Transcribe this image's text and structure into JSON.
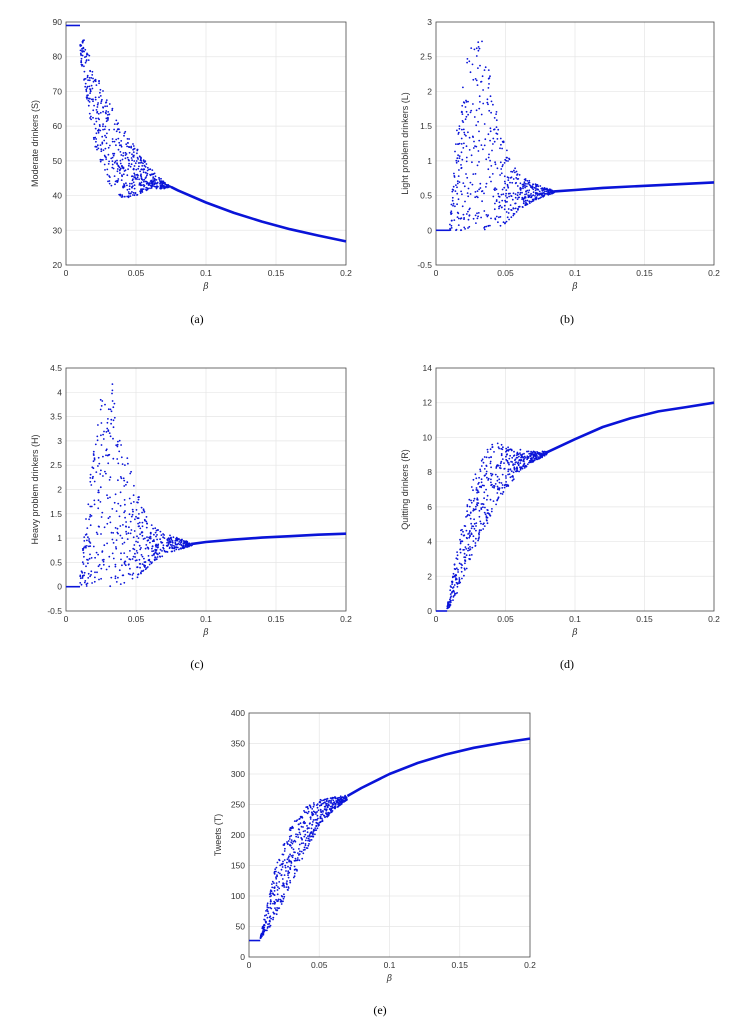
{
  "figure": {
    "captions": [
      "(a)",
      "(b)",
      "(c)",
      "(d)",
      "(e)"
    ]
  },
  "colors": {
    "series": "#0a14d8",
    "grid": "#e6e6e6",
    "axis": "#4d4d4d"
  },
  "chart_data": [
    {
      "type": "scatter",
      "title": "",
      "xlabel": "β",
      "ylabel": "Moderate drinkers (S)",
      "xlim": [
        0,
        0.2
      ],
      "ylim": [
        20,
        90
      ],
      "xticks": [
        "0",
        "0.05",
        "0.1",
        "0.15",
        "0.2"
      ],
      "yticks": [
        "20",
        "30",
        "40",
        "50",
        "60",
        "70",
        "80",
        "90"
      ],
      "grid": true,
      "series": [
        {
          "fixed_start": [
            0,
            89
          ],
          "transition_x": 0.01,
          "chaos_end_x": 0.075,
          "upper_envelope": [
            [
              0.01,
              88
            ],
            [
              0.02,
              77
            ],
            [
              0.03,
              68
            ],
            [
              0.04,
              60
            ],
            [
              0.05,
              54
            ],
            [
              0.06,
              48
            ],
            [
              0.07,
              44
            ],
            [
              0.075,
              42.5
            ]
          ],
          "lower_envelope": [
            [
              0.01,
              80
            ],
            [
              0.02,
              55
            ],
            [
              0.03,
              44
            ],
            [
              0.04,
              39
            ],
            [
              0.05,
              40
            ],
            [
              0.06,
              42
            ],
            [
              0.07,
              42
            ],
            [
              0.075,
              42.5
            ]
          ],
          "curve": [
            [
              0.075,
              42.5
            ],
            [
              0.08,
              41.5
            ],
            [
              0.1,
              38
            ],
            [
              0.12,
              35
            ],
            [
              0.14,
              32.5
            ],
            [
              0.16,
              30.3
            ],
            [
              0.18,
              28.5
            ],
            [
              0.2,
              26.8
            ]
          ]
        }
      ]
    },
    {
      "type": "scatter",
      "title": "",
      "xlabel": "β",
      "ylabel": "Light problem drinkers (L)",
      "xlim": [
        0,
        0.2
      ],
      "ylim": [
        -0.5,
        3
      ],
      "xticks": [
        "0",
        "0.05",
        "0.1",
        "0.15",
        "0.2"
      ],
      "yticks": [
        "-0.5",
        "0",
        "0.5",
        "1",
        "1.5",
        "2",
        "2.5",
        "3"
      ],
      "grid": true,
      "series": [
        {
          "fixed_start": [
            0,
            0
          ],
          "transition_x": 0.01,
          "chaos_end_x": 0.085,
          "upper_envelope": [
            [
              0.01,
              0.2
            ],
            [
              0.015,
              1.5
            ],
            [
              0.02,
              2.2
            ],
            [
              0.025,
              2.75
            ],
            [
              0.03,
              2.7
            ],
            [
              0.033,
              2.9
            ],
            [
              0.04,
              2.2
            ],
            [
              0.045,
              1.5
            ],
            [
              0.05,
              1.2
            ],
            [
              0.06,
              0.8
            ],
            [
              0.07,
              0.68
            ],
            [
              0.085,
              0.57
            ]
          ],
          "lower_envelope": [
            [
              0.01,
              0
            ],
            [
              0.02,
              0
            ],
            [
              0.03,
              0
            ],
            [
              0.04,
              0
            ],
            [
              0.045,
              0.05
            ],
            [
              0.05,
              0.1
            ],
            [
              0.06,
              0.3
            ],
            [
              0.07,
              0.42
            ],
            [
              0.085,
              0.54
            ]
          ],
          "curve": [
            [
              0.085,
              0.56
            ],
            [
              0.1,
              0.58
            ],
            [
              0.12,
              0.61
            ],
            [
              0.14,
              0.63
            ],
            [
              0.16,
              0.65
            ],
            [
              0.18,
              0.67
            ],
            [
              0.2,
              0.69
            ]
          ]
        }
      ]
    },
    {
      "type": "scatter",
      "title": "",
      "xlabel": "β",
      "ylabel": "Heavy problem drinkers (H)",
      "xlim": [
        0,
        0.2
      ],
      "ylim": [
        -0.5,
        4.5
      ],
      "xticks": [
        "0",
        "0.05",
        "0.1",
        "0.15",
        "0.2"
      ],
      "yticks": [
        "-0.5",
        "0",
        "0.5",
        "1",
        "1.5",
        "2",
        "2.5",
        "3",
        "3.5",
        "4",
        "4.5"
      ],
      "grid": true,
      "series": [
        {
          "fixed_start": [
            0,
            0
          ],
          "transition_x": 0.01,
          "chaos_end_x": 0.09,
          "upper_envelope": [
            [
              0.01,
              0.3
            ],
            [
              0.015,
              1.7
            ],
            [
              0.02,
              3.0
            ],
            [
              0.025,
              3.9
            ],
            [
              0.03,
              3.7
            ],
            [
              0.033,
              4.25
            ],
            [
              0.04,
              3.0
            ],
            [
              0.045,
              2.6
            ],
            [
              0.05,
              2.0
            ],
            [
              0.06,
              1.3
            ],
            [
              0.07,
              1.1
            ],
            [
              0.09,
              0.9
            ]
          ],
          "lower_envelope": [
            [
              0.01,
              0
            ],
            [
              0.02,
              0
            ],
            [
              0.03,
              0
            ],
            [
              0.04,
              0
            ],
            [
              0.045,
              0.05
            ],
            [
              0.05,
              0.15
            ],
            [
              0.06,
              0.45
            ],
            [
              0.07,
              0.65
            ],
            [
              0.09,
              0.85
            ]
          ],
          "curve": [
            [
              0.09,
              0.88
            ],
            [
              0.1,
              0.92
            ],
            [
              0.12,
              0.97
            ],
            [
              0.14,
              1.01
            ],
            [
              0.16,
              1.04
            ],
            [
              0.18,
              1.07
            ],
            [
              0.2,
              1.09
            ]
          ]
        }
      ]
    },
    {
      "type": "scatter",
      "title": "",
      "xlabel": "β",
      "ylabel": "Quitting drinkers (R)",
      "xlim": [
        0,
        0.2
      ],
      "ylim": [
        0,
        14
      ],
      "xticks": [
        "0",
        "0.05",
        "0.1",
        "0.15",
        "0.2"
      ],
      "yticks": [
        "0",
        "2",
        "4",
        "6",
        "8",
        "10",
        "12",
        "14"
      ],
      "grid": true,
      "series": [
        {
          "fixed_start": [
            0,
            0
          ],
          "transition_x": 0.008,
          "chaos_end_x": 0.08,
          "upper_envelope": [
            [
              0.008,
              0.3
            ],
            [
              0.015,
              3.5
            ],
            [
              0.02,
              5.5
            ],
            [
              0.03,
              8.5
            ],
            [
              0.04,
              9.8
            ],
            [
              0.05,
              9.5
            ],
            [
              0.06,
              9.3
            ],
            [
              0.07,
              9.2
            ],
            [
              0.08,
              9.2
            ]
          ],
          "lower_envelope": [
            [
              0.008,
              0
            ],
            [
              0.015,
              1.0
            ],
            [
              0.02,
              2.0
            ],
            [
              0.03,
              4.0
            ],
            [
              0.04,
              5.5
            ],
            [
              0.05,
              7.0
            ],
            [
              0.06,
              8.0
            ],
            [
              0.07,
              8.6
            ],
            [
              0.08,
              9.0
            ]
          ],
          "curve": [
            [
              0.08,
              9.15
            ],
            [
              0.1,
              9.9
            ],
            [
              0.12,
              10.6
            ],
            [
              0.14,
              11.1
            ],
            [
              0.16,
              11.5
            ],
            [
              0.18,
              11.75
            ],
            [
              0.2,
              12.0
            ]
          ]
        }
      ]
    },
    {
      "type": "scatter",
      "title": "",
      "xlabel": "β",
      "ylabel": "Tweets (T)",
      "xlim": [
        0,
        0.2
      ],
      "ylim": [
        0,
        400
      ],
      "xticks": [
        "0",
        "0.05",
        "0.1",
        "0.15",
        "0.2"
      ],
      "yticks": [
        "0",
        "50",
        "100",
        "150",
        "200",
        "250",
        "300",
        "350",
        "400"
      ],
      "grid": true,
      "series": [
        {
          "fixed_start": [
            0,
            27
          ],
          "transition_x": 0.008,
          "chaos_end_x": 0.07,
          "upper_envelope": [
            [
              0.008,
              30
            ],
            [
              0.015,
              110
            ],
            [
              0.02,
              160
            ],
            [
              0.03,
              215
            ],
            [
              0.04,
              245
            ],
            [
              0.05,
              258
            ],
            [
              0.06,
              262
            ],
            [
              0.07,
              265
            ]
          ],
          "lower_envelope": [
            [
              0.008,
              30
            ],
            [
              0.015,
              50
            ],
            [
              0.02,
              70
            ],
            [
              0.03,
              120
            ],
            [
              0.04,
              170
            ],
            [
              0.05,
              215
            ],
            [
              0.06,
              240
            ],
            [
              0.07,
              258
            ]
          ],
          "curve": [
            [
              0.07,
              264
            ],
            [
              0.08,
              277
            ],
            [
              0.1,
              300
            ],
            [
              0.12,
              318
            ],
            [
              0.14,
              332
            ],
            [
              0.16,
              343
            ],
            [
              0.18,
              351
            ],
            [
              0.2,
              358
            ]
          ]
        }
      ]
    }
  ]
}
